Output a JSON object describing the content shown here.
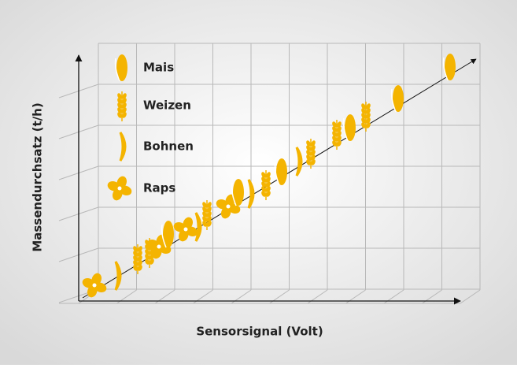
{
  "legend": [
    {
      "label": "Mais"
    },
    {
      "label": "Weizen"
    },
    {
      "label": "Bohnen"
    },
    {
      "label": "Raps"
    }
  ],
  "x_axis": {
    "label": "Sensorsignal (Volt)"
  },
  "y_axis": {
    "label": "Massendurchsatz (t/h)"
  }
}
